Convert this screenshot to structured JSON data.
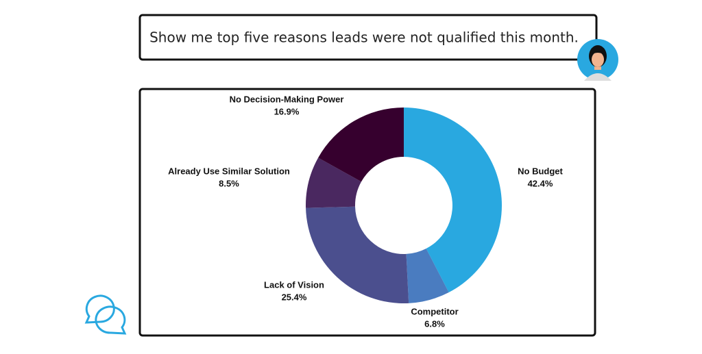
{
  "prompt": "Show me top five reasons leads were not qualified this month.",
  "chart_data": {
    "type": "donut",
    "categories": [
      "No Budget",
      "Competitor",
      "Lack of Vision",
      "Already Use Similar Solution",
      "No Decision-Making Power"
    ],
    "values": [
      42.4,
      6.8,
      25.4,
      8.5,
      16.9
    ],
    "value_labels": [
      "42.4%",
      "6.8%",
      "25.4%",
      "8.5%",
      "16.9%"
    ],
    "colors": [
      "#29a8e0",
      "#4a7cc0",
      "#4b4f8e",
      "#4a2860",
      "#36002e"
    ]
  }
}
